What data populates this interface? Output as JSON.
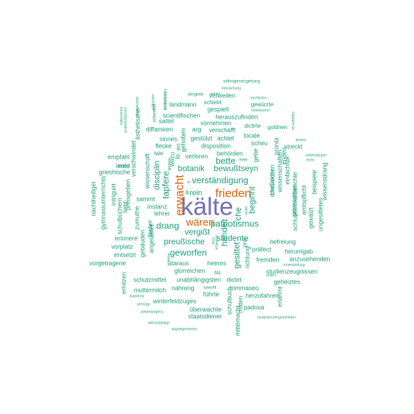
{
  "colors": {
    "teal": "#1b9e77",
    "orange": "#d95f02",
    "purple": "#7570b3"
  },
  "words": [
    {
      "text": "kälte",
      "color": "purple"
    },
    {
      "text": "frieden",
      "color": "orange"
    },
    {
      "text": "erwacht",
      "color": "orange"
    },
    {
      "text": "wären",
      "color": "orange"
    },
    {
      "text": "selbstgesetzgebung",
      "color": "teal"
    },
    {
      "text": "einmischung",
      "color": "teal"
    },
    {
      "text": "obrigkeit",
      "color": "teal"
    },
    {
      "text": "wortes",
      "color": "teal"
    },
    {
      "text": "kirchlichen",
      "color": "teal"
    },
    {
      "text": "landmann",
      "color": "teal"
    },
    {
      "text": "schiebt",
      "color": "teal"
    },
    {
      "text": "gewürzte",
      "color": "teal"
    },
    {
      "text": "helvetischen",
      "color": "teal"
    },
    {
      "text": "gespielt",
      "color": "teal"
    },
    {
      "text": "scientifischen",
      "color": "teal"
    },
    {
      "text": "herauszufinden",
      "color": "teal"
    },
    {
      "text": "sattel",
      "color": "teal"
    },
    {
      "text": "vornehmen",
      "color": "teal"
    },
    {
      "text": "dictirte",
      "color": "teal"
    },
    {
      "text": "goldnen",
      "color": "teal"
    },
    {
      "text": "diffamiren",
      "color": "teal"
    },
    {
      "text": "arg",
      "color": "teal"
    },
    {
      "text": "verschafft",
      "color": "teal"
    },
    {
      "text": "locale",
      "color": "teal"
    },
    {
      "text": "beiden",
      "color": "teal"
    },
    {
      "text": "sinnes",
      "color": "teal"
    },
    {
      "text": "gestützt",
      "color": "teal"
    },
    {
      "text": "achtet",
      "color": "teal"
    },
    {
      "text": "scheu",
      "color": "teal"
    },
    {
      "text": "streckt",
      "color": "teal"
    },
    {
      "text": "flecke",
      "color": "teal"
    },
    {
      "text": "disposition",
      "color": "teal"
    },
    {
      "text": "tale",
      "color": "teal"
    },
    {
      "text": "behörden",
      "color": "teal"
    },
    {
      "text": "frele",
      "color": "teal"
    },
    {
      "text": "mild",
      "color": "teal"
    },
    {
      "text": "empfahl",
      "color": "teal"
    },
    {
      "text": "verloren",
      "color": "teal"
    },
    {
      "text": "bette",
      "color": "teal"
    },
    {
      "text": "siebenbürgen",
      "color": "teal"
    },
    {
      "text": "recht",
      "color": "teal"
    },
    {
      "text": "lerne",
      "color": "teal"
    },
    {
      "text": "griechische",
      "color": "teal"
    },
    {
      "text": "botanik",
      "color": "teal"
    },
    {
      "text": "bewußtseyn",
      "color": "teal"
    },
    {
      "text": "verständigung",
      "color": "teal"
    },
    {
      "text": "tapfere",
      "color": "teal"
    },
    {
      "text": "rein",
      "color": "teal"
    },
    {
      "text": "beginnt",
      "color": "teal"
    },
    {
      "text": "sammt",
      "color": "teal"
    },
    {
      "text": "instanz",
      "color": "teal"
    },
    {
      "text": "lehrer",
      "color": "teal"
    },
    {
      "text": "drang",
      "color": "teal"
    },
    {
      "text": "patriotismus",
      "color": "teal"
    },
    {
      "text": "vergißt",
      "color": "teal"
    },
    {
      "text": "preußische",
      "color": "teal"
    },
    {
      "text": "studente",
      "color": "teal"
    },
    {
      "text": "präfect",
      "color": "teal"
    },
    {
      "text": "befreiung",
      "color": "teal"
    },
    {
      "text": "herumgab",
      "color": "teal"
    },
    {
      "text": "geworfen",
      "color": "teal"
    },
    {
      "text": "anzusehenden",
      "color": "teal"
    },
    {
      "text": "fremden",
      "color": "teal"
    },
    {
      "text": "innern",
      "color": "teal"
    },
    {
      "text": "stellung",
      "color": "teal"
    },
    {
      "text": "erinnere",
      "color": "teal"
    },
    {
      "text": "entsetzt",
      "color": "teal"
    },
    {
      "text": "vorplatz",
      "color": "teal"
    },
    {
      "text": "daraus",
      "color": "teal"
    },
    {
      "text": "heeres",
      "color": "teal"
    },
    {
      "text": "vorgetragene",
      "color": "teal"
    },
    {
      "text": "glorreichen",
      "color": "teal"
    },
    {
      "text": "su",
      "color": "teal"
    },
    {
      "text": "studienzeugnissen",
      "color": "teal"
    },
    {
      "text": "schutzmittel",
      "color": "teal"
    },
    {
      "text": "unabhängigsten",
      "color": "teal"
    },
    {
      "text": "dictirt",
      "color": "teal"
    },
    {
      "text": "geheiztes",
      "color": "teal"
    },
    {
      "text": "nahrung",
      "color": "teal"
    },
    {
      "text": "sowohl",
      "color": "teal"
    },
    {
      "text": "tommaseo",
      "color": "teal"
    },
    {
      "text": "muttermilch",
      "color": "teal"
    },
    {
      "text": "führte",
      "color": "teal"
    },
    {
      "text": "herzufahren",
      "color": "teal"
    },
    {
      "text": "augsburg",
      "color": "teal"
    },
    {
      "text": "winterfeldzuges",
      "color": "teal"
    },
    {
      "text": "vermöge",
      "color": "teal"
    },
    {
      "text": "überwachte",
      "color": "teal"
    },
    {
      "text": "padova",
      "color": "teal"
    },
    {
      "text": "siebenbürgens",
      "color": "teal"
    },
    {
      "text": "staatsdiener",
      "color": "teal"
    },
    {
      "text": "landeskirchengemeinden",
      "color": "teal"
    },
    {
      "text": "selbstständige",
      "color": "teal"
    },
    {
      "text": "angelegenheiten",
      "color": "teal"
    },
    {
      "text": "verweilen",
      "color": "teal"
    },
    {
      "text": "schwindet",
      "color": "teal"
    },
    {
      "text": "ästhetische",
      "color": "teal"
    },
    {
      "text": "verschwindet",
      "color": "teal"
    },
    {
      "text": "wissenschaft",
      "color": "teal"
    },
    {
      "text": "disciplin",
      "color": "teal"
    },
    {
      "text": "wozu",
      "color": "teal"
    },
    {
      "text": "gehoben",
      "color": "teal"
    },
    {
      "text": "intriguirt",
      "color": "teal"
    },
    {
      "text": "gymnasiumterrichts",
      "color": "teal"
    },
    {
      "text": "nachtheiliger",
      "color": "teal"
    },
    {
      "text": "preisgeben",
      "color": "teal"
    },
    {
      "text": "liebt",
      "color": "teal"
    },
    {
      "text": "schulbüchern",
      "color": "teal"
    },
    {
      "text": "zumuthe",
      "color": "teal"
    },
    {
      "text": "fächer",
      "color": "teal"
    },
    {
      "text": "angetastet",
      "color": "teal"
    },
    {
      "text": "gebäuden",
      "color": "teal"
    },
    {
      "text": "erhitzen",
      "color": "teal"
    },
    {
      "text": "wärme",
      "color": "teal"
    },
    {
      "text": "handelt",
      "color": "teal"
    },
    {
      "text": "che",
      "color": "teal"
    },
    {
      "text": "gesittet",
      "color": "teal"
    },
    {
      "text": "richtung",
      "color": "teal"
    },
    {
      "text": "schulbuch",
      "color": "teal"
    },
    {
      "text": "mitten",
      "color": "teal"
    },
    {
      "text": "mittemacht",
      "color": "teal"
    },
    {
      "text": "erlahmt",
      "color": "teal"
    },
    {
      "text": "gebe",
      "color": "teal"
    },
    {
      "text": "pronta",
      "color": "teal"
    },
    {
      "text": "wissenschaften",
      "color": "teal"
    },
    {
      "text": "einfachste",
      "color": "teal"
    },
    {
      "text": "enden",
      "color": "teal"
    },
    {
      "text": "charakter",
      "color": "teal"
    },
    {
      "text": "dreißeichen",
      "color": "teal"
    },
    {
      "text": "amtspflicht",
      "color": "teal"
    },
    {
      "text": "schlendrian",
      "color": "teal"
    },
    {
      "text": "schlupfwinkelberichte",
      "color": "teal"
    },
    {
      "text": "gewälzt",
      "color": "teal"
    },
    {
      "text": "ungesittetes",
      "color": "teal"
    },
    {
      "text": "beispiele",
      "color": "teal"
    },
    {
      "text": "wissensdrang",
      "color": "teal"
    },
    {
      "text": "verwaltliden",
      "color": "teal"
    },
    {
      "text": "vollkommen",
      "color": "teal"
    },
    {
      "text": "protestantischen",
      "color": "teal"
    },
    {
      "text": "grundgesetze",
      "color": "teal"
    },
    {
      "text": "politischen",
      "color": "teal"
    },
    {
      "text": "konfessions",
      "color": "teal"
    },
    {
      "text": "landeskirchen",
      "color": "teal"
    },
    {
      "text": "weiter",
      "color": "teal"
    },
    {
      "text": "dazu",
      "color": "teal"
    },
    {
      "text": "il",
      "color": "teal"
    },
    {
      "text": "à",
      "color": "teal"
    },
    {
      "text": "lo",
      "color": "teal"
    },
    {
      "text": "en",
      "color": "teal"
    },
    {
      "text": "pro",
      "color": "teal"
    },
    {
      "text": "dotten",
      "color": "teal"
    },
    {
      "text": "schweizer",
      "color": "teal"
    },
    {
      "text": "ändern",
      "color": "teal"
    }
  ]
}
